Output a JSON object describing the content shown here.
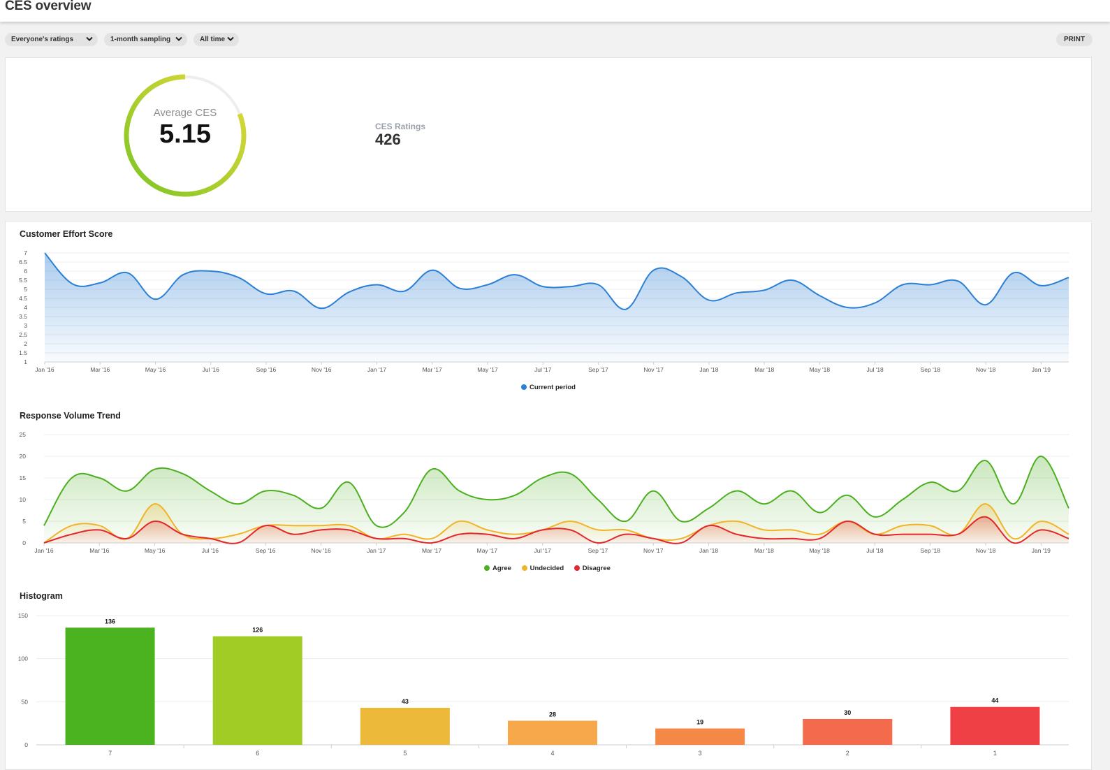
{
  "header": {
    "title": "CES overview"
  },
  "filters": [
    {
      "label": "Everyone's ratings"
    },
    {
      "label": "1-month sampling"
    },
    {
      "label": "All time"
    }
  ],
  "print_label": "PRINT",
  "summary": {
    "avg_label": "Average CES",
    "avg_value": "5.15",
    "avg_fraction": 0.81,
    "ratings_label": "CES Ratings",
    "ratings_value": "426"
  },
  "colors": {
    "ces_line": "#2b7fd4",
    "agree": "#4caf1f",
    "undecided": "#f0b429",
    "disagree": "#e0282e",
    "gauge_start": "#7cc424",
    "gauge_end": "#e6db3a",
    "gauge_track": "#eeeeee"
  },
  "chart_data": [
    {
      "type": "area",
      "title": "Customer Effort Score",
      "x": [
        "Jan '16",
        "Feb '16",
        "Mar '16",
        "Apr '16",
        "May '16",
        "Jun '16",
        "Jul '16",
        "Aug '16",
        "Sep '16",
        "Oct '16",
        "Nov '16",
        "Dec '16",
        "Jan '17",
        "Feb '17",
        "Mar '17",
        "Apr '17",
        "May '17",
        "Jun '17",
        "Jul '17",
        "Aug '17",
        "Sep '17",
        "Oct '17",
        "Nov '17",
        "Dec '17",
        "Jan '18",
        "Feb '18",
        "Mar '18",
        "Apr '18",
        "May '18",
        "Jun '18",
        "Jul '18",
        "Aug '18",
        "Sep '18",
        "Oct '18",
        "Nov '18",
        "Dec '18",
        "Jan '19",
        "Feb '19"
      ],
      "xticks": [
        "Jan '16",
        "Mar '16",
        "May '16",
        "Jul '16",
        "Sep '16",
        "Nov '16",
        "Jan '17",
        "Mar '17",
        "May '17",
        "Jul '17",
        "Sep '17",
        "Nov '17",
        "Jan '18",
        "Mar '18",
        "May '18",
        "Jul '18",
        "Sep '18",
        "Nov '18",
        "Jan '19"
      ],
      "yticks": [
        "1",
        "1.5",
        "2",
        "2.5",
        "3",
        "3.5",
        "4",
        "4.5",
        "5",
        "5.5",
        "6",
        "6.5",
        "7"
      ],
      "ylim": [
        1,
        7
      ],
      "series": [
        {
          "name": "Current period",
          "values": [
            7,
            5.3,
            5.35,
            5.9,
            4.45,
            5.8,
            6.0,
            5.65,
            4.75,
            4.9,
            3.95,
            4.85,
            5.25,
            4.9,
            6.05,
            5.05,
            5.25,
            5.8,
            5.15,
            5.15,
            5.25,
            3.9,
            6.05,
            5.7,
            4.4,
            4.8,
            4.95,
            5.5,
            4.65,
            4.0,
            4.25,
            5.25,
            5.25,
            5.45,
            4.15,
            5.9,
            5.2,
            5.65
          ]
        }
      ],
      "legend": "bottom-center",
      "grid": true
    },
    {
      "type": "area",
      "title": "Response Volume Trend",
      "x": [
        "Jan '16",
        "Feb '16",
        "Mar '16",
        "Apr '16",
        "May '16",
        "Jun '16",
        "Jul '16",
        "Aug '16",
        "Sep '16",
        "Oct '16",
        "Nov '16",
        "Dec '16",
        "Jan '17",
        "Feb '17",
        "Mar '17",
        "Apr '17",
        "May '17",
        "Jun '17",
        "Jul '17",
        "Aug '17",
        "Sep '17",
        "Oct '17",
        "Nov '17",
        "Dec '17",
        "Jan '18",
        "Feb '18",
        "Mar '18",
        "Apr '18",
        "May '18",
        "Jun '18",
        "Jul '18",
        "Aug '18",
        "Sep '18",
        "Oct '18",
        "Nov '18",
        "Dec '18",
        "Jan '19",
        "Feb '19"
      ],
      "xticks": [
        "Jan '16",
        "Mar '16",
        "May '16",
        "Jul '16",
        "Sep '16",
        "Nov '16",
        "Jan '17",
        "Mar '17",
        "May '17",
        "Jul '17",
        "Sep '17",
        "Nov '17",
        "Jan '18",
        "Mar '18",
        "May '18",
        "Jul '18",
        "Sep '18",
        "Nov '18",
        "Jan '19"
      ],
      "yticks": [
        "0",
        "5",
        "10",
        "15",
        "20",
        "25"
      ],
      "ylim": [
        0,
        25
      ],
      "series": [
        {
          "name": "Agree",
          "values": [
            4,
            15,
            15,
            12,
            17,
            16,
            12,
            9,
            12,
            11,
            8,
            14,
            4,
            7,
            17,
            12,
            10,
            11,
            15,
            16,
            10,
            5,
            12,
            5,
            8,
            12,
            9,
            12,
            7,
            11,
            6,
            10,
            14,
            12,
            19,
            9,
            20,
            8
          ]
        },
        {
          "name": "Undecided",
          "values": [
            0,
            4,
            4,
            1,
            9,
            2,
            1,
            2,
            4,
            4,
            4,
            4,
            1,
            2,
            1,
            5,
            3,
            2,
            3,
            5,
            3,
            3,
            1,
            1,
            4,
            5,
            3,
            3,
            2,
            5,
            2,
            4,
            4,
            2,
            9,
            1,
            5,
            2
          ]
        },
        {
          "name": "Disagree",
          "values": [
            0,
            2,
            3,
            1,
            5,
            2,
            1,
            0,
            4,
            2,
            3,
            3,
            1,
            1,
            0,
            2,
            2,
            1,
            3,
            3,
            0,
            2,
            1,
            0,
            4,
            2,
            1,
            1,
            1,
            5,
            2,
            2,
            2,
            2,
            6,
            0,
            3,
            1
          ]
        }
      ],
      "legend": "bottom-center",
      "grid": true
    },
    {
      "type": "bar",
      "title": "Histogram",
      "categories": [
        "7",
        "6",
        "5",
        "4",
        "3",
        "2",
        "1"
      ],
      "values": [
        136,
        126,
        43,
        28,
        19,
        30,
        44
      ],
      "bar_colors": [
        "#4bb220",
        "#a0cc25",
        "#edb93a",
        "#f6a84a",
        "#f58847",
        "#f36a4d",
        "#ef4145"
      ],
      "yticks": [
        "0",
        "50",
        "100",
        "150"
      ],
      "ylim": [
        0,
        150
      ],
      "grid": true
    }
  ]
}
